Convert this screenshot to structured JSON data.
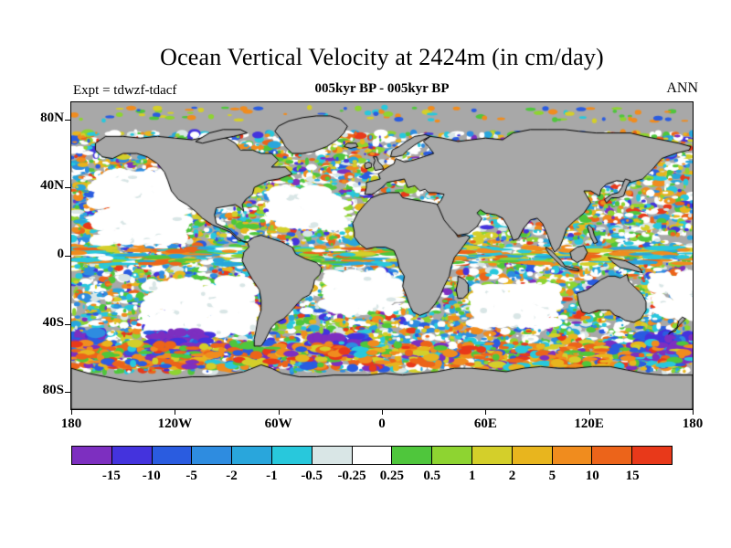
{
  "chart_data": {
    "type": "heatmap",
    "title": "Ocean Vertical Velocity at 2424m (in cm/day)",
    "subtitle": "005kyr BP - 005kyr BP",
    "experiment": "Expt = tdwzf-tdacf",
    "season": "ANN",
    "units": "cm/day",
    "depth": "2424m",
    "projection": "equirectangular",
    "lon_range": [
      -180,
      180
    ],
    "lat_range": [
      -90,
      90
    ],
    "lat_ticks": [
      {
        "label": "80N",
        "lat": 80
      },
      {
        "label": "40N",
        "lat": 40
      },
      {
        "label": "0",
        "lat": 0
      },
      {
        "label": "40S",
        "lat": -40
      },
      {
        "label": "80S",
        "lat": -80
      }
    ],
    "lon_ticks": [
      {
        "label": "180",
        "lon": -180
      },
      {
        "label": "120W",
        "lon": -120
      },
      {
        "label": "60W",
        "lon": -60
      },
      {
        "label": "0",
        "lon": 0
      },
      {
        "label": "60E",
        "lon": 60
      },
      {
        "label": "120E",
        "lon": 120
      },
      {
        "label": "180",
        "lon": 180
      }
    ],
    "colorbar": {
      "labels": [
        "-15",
        "-10",
        "-5",
        "-2",
        "-1",
        "-0.5",
        "-0.25",
        "0.25",
        "0.5",
        "1",
        "2",
        "5",
        "10",
        "15"
      ],
      "boundaries": [
        -15,
        -10,
        -5,
        -2,
        -1,
        -0.5,
        -0.25,
        0.25,
        0.5,
        1,
        2,
        5,
        10,
        15
      ],
      "colors": [
        "#7d2fc0",
        "#4433dd",
        "#2a5ce0",
        "#2e8ce0",
        "#29a6dc",
        "#28c8dc",
        "#d9e6e6",
        "#ffffff",
        "#4fc63c",
        "#8ed431",
        "#d4cf2a",
        "#e8b51e",
        "#f08c1e",
        "#ec641a",
        "#e8391a"
      ]
    },
    "map": {
      "land_color": "#a8a8a8",
      "coastline_color": "#000000",
      "frame_color": "#000000"
    }
  }
}
